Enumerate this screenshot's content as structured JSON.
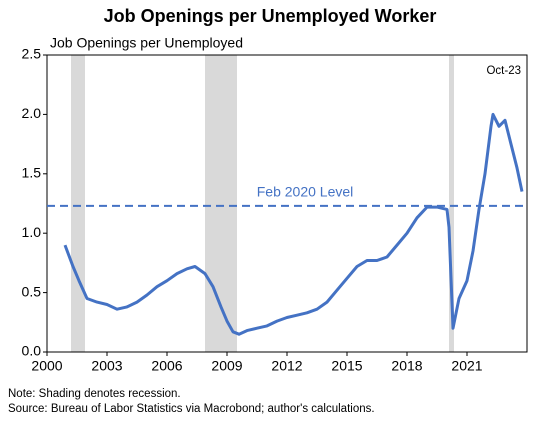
{
  "chart_data": {
    "type": "line",
    "title": "Job Openings per Unemployed Worker",
    "ylabel": "Job Openings per Unemployed",
    "annotation": "Oct-23",
    "reference_line": {
      "label": "Feb 2020 Level",
      "value": 1.23
    },
    "notes": [
      "Note: Shading denotes recession.",
      "Source: Bureau of Labor Statistics via Macrobond; author's calculations."
    ],
    "recessions": [
      [
        2001.2,
        2001.9
      ],
      [
        2007.9,
        2009.5
      ],
      [
        2020.1,
        2020.35
      ]
    ],
    "x": [
      2000.9,
      2001.3,
      2001.6,
      2002.0,
      2002.5,
      2003.0,
      2003.5,
      2004.0,
      2004.5,
      2005.0,
      2005.5,
      2006.0,
      2006.5,
      2007.0,
      2007.4,
      2007.9,
      2008.3,
      2008.7,
      2009.0,
      2009.3,
      2009.6,
      2010.0,
      2010.5,
      2011.0,
      2011.5,
      2012.0,
      2012.5,
      2013.0,
      2013.5,
      2014.0,
      2014.5,
      2015.0,
      2015.5,
      2016.0,
      2016.5,
      2017.0,
      2017.5,
      2018.0,
      2018.5,
      2019.0,
      2019.5,
      2020.0,
      2020.1,
      2020.3,
      2020.6,
      2021.0,
      2021.3,
      2021.6,
      2021.9,
      2022.2,
      2022.3,
      2022.6,
      2022.9,
      2023.2,
      2023.5,
      2023.75
    ],
    "series": [
      {
        "name": "Job Openings per Unemployed",
        "color": "#4472c4",
        "values": [
          0.9,
          0.72,
          0.6,
          0.45,
          0.42,
          0.4,
          0.36,
          0.38,
          0.42,
          0.48,
          0.55,
          0.6,
          0.66,
          0.7,
          0.72,
          0.66,
          0.55,
          0.38,
          0.26,
          0.17,
          0.15,
          0.18,
          0.2,
          0.22,
          0.26,
          0.29,
          0.31,
          0.33,
          0.36,
          0.42,
          0.52,
          0.62,
          0.72,
          0.77,
          0.77,
          0.8,
          0.9,
          1.0,
          1.13,
          1.22,
          1.22,
          1.2,
          1.05,
          0.2,
          0.45,
          0.6,
          0.85,
          1.2,
          1.5,
          1.9,
          2.0,
          1.9,
          1.95,
          1.75,
          1.55,
          1.35
        ]
      }
    ],
    "xlim": [
      2000,
      2024
    ],
    "xticks": [
      2000,
      2003,
      2006,
      2009,
      2012,
      2015,
      2018,
      2021
    ],
    "ylim": [
      0,
      2.5
    ],
    "yticks": [
      {
        "value": 0,
        "label": "0.0"
      },
      0.5,
      {
        "value": 1,
        "label": "1.0"
      },
      1.5,
      {
        "value": 2,
        "label": "2.0"
      },
      2.5
    ]
  }
}
